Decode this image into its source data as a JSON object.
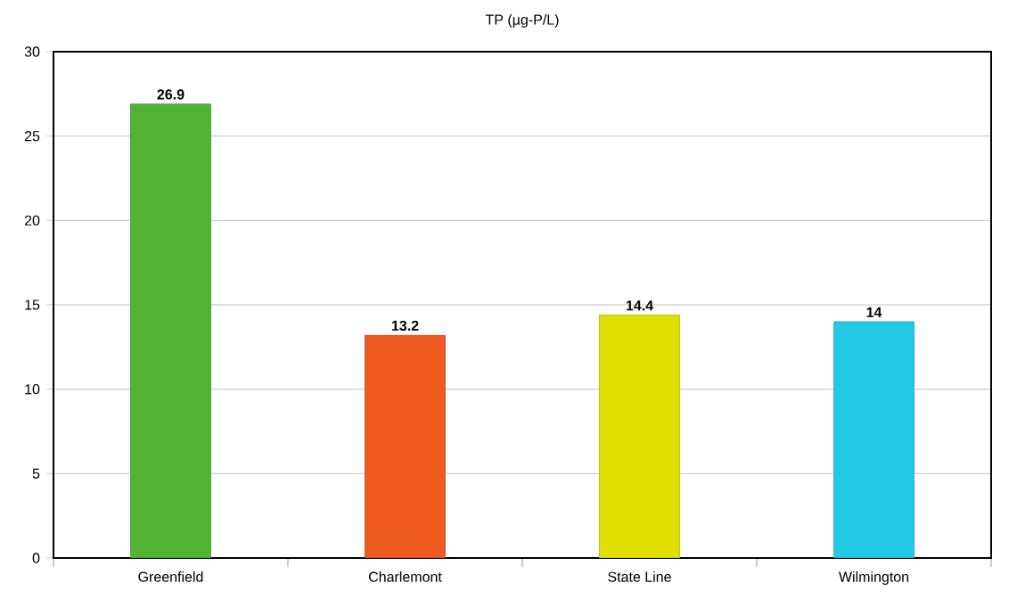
{
  "chart_data": {
    "type": "bar",
    "title": "TP (µg-P/L)",
    "categories": [
      "Greenfield",
      "Charlemont",
      "State Line",
      "Wilmington"
    ],
    "values": [
      26.9,
      13.2,
      14.4,
      14
    ],
    "colors": [
      "#52b332",
      "#ee5a1f",
      "#dfe000",
      "#22c9e4"
    ],
    "ylim": [
      0,
      30
    ],
    "yticks": [
      0,
      5,
      10,
      15,
      20,
      25,
      30
    ],
    "grid": "y",
    "data_labels": true
  }
}
